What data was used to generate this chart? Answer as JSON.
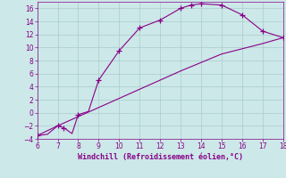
{
  "xlabel": "Windchill (Refroidissement éolien,°C)",
  "bg_color": "#cce8e8",
  "line_color": "#880088",
  "grid_color": "#aacccc",
  "tick_color": "#880088",
  "label_color": "#880088",
  "xlim": [
    6,
    18
  ],
  "ylim": [
    -4,
    17
  ],
  "xticks": [
    6,
    7,
    8,
    9,
    10,
    11,
    12,
    13,
    14,
    15,
    16,
    17,
    18
  ],
  "yticks": [
    -4,
    -2,
    0,
    2,
    4,
    6,
    8,
    10,
    12,
    14,
    16
  ],
  "curve1_x": [
    6.0,
    6.5,
    7.0,
    7.3,
    7.7,
    8.0,
    8.5,
    9.0,
    10.0,
    11.0,
    12.0,
    13.0,
    13.5,
    14.0,
    14.5,
    15.0,
    16.0,
    17.0,
    18.0
  ],
  "curve1_y": [
    -3.5,
    -3.3,
    -2.0,
    -2.3,
    -3.2,
    -0.3,
    0.2,
    5.0,
    9.5,
    13.0,
    14.2,
    16.0,
    16.5,
    16.7,
    16.6,
    16.5,
    15.0,
    12.5,
    11.5
  ],
  "curve1_markers_x": [
    6.0,
    7.0,
    7.3,
    8.0,
    9.0,
    10.0,
    11.0,
    12.0,
    13.0,
    13.5,
    14.0,
    15.0,
    16.0,
    17.0,
    18.0
  ],
  "curve1_markers_y": [
    -3.5,
    -2.0,
    -2.3,
    -0.3,
    5.0,
    9.5,
    13.0,
    14.2,
    16.0,
    16.5,
    16.7,
    16.5,
    15.0,
    12.5,
    11.5
  ],
  "curve2_x": [
    6.0,
    7.0,
    8.0,
    9.0,
    10.0,
    11.0,
    12.0,
    13.0,
    14.0,
    15.0,
    16.0,
    17.0,
    18.0
  ],
  "curve2_y": [
    -3.5,
    -2.0,
    -0.6,
    0.8,
    2.2,
    3.6,
    5.0,
    6.4,
    7.7,
    9.0,
    9.8,
    10.6,
    11.5
  ],
  "figsize": [
    3.2,
    2.0
  ],
  "dpi": 100
}
